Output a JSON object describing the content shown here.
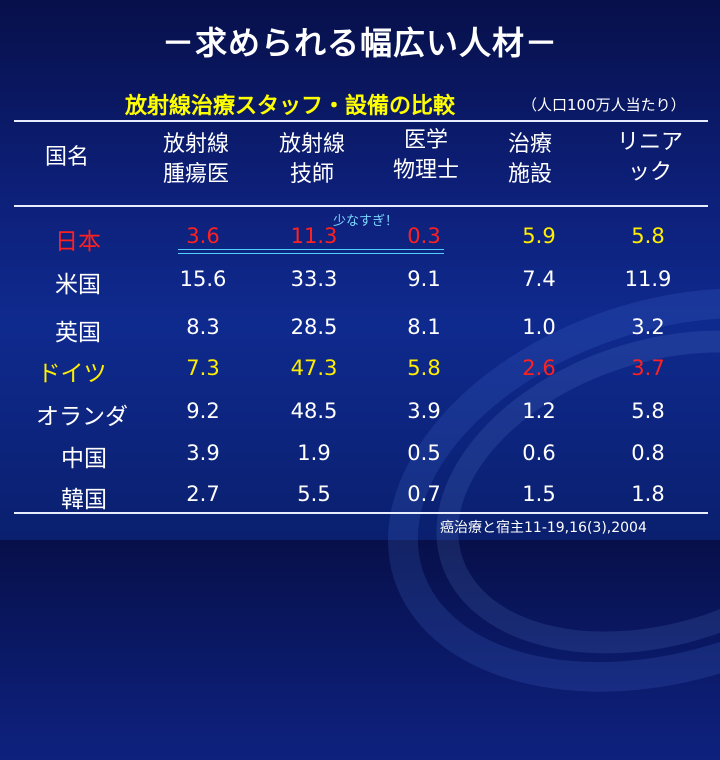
{
  "title": "－求められる幅広い人材－",
  "subtitle": "放射線治療スタッフ・設備の比較",
  "subnote": "（人口100万人当たり）",
  "headers": [
    "国名",
    "放射線\n腫瘍医",
    "放射線\n技師",
    "医学\n物理士",
    "治療\n施設",
    "リニア\nック"
  ],
  "note": "少なすぎ！",
  "citation": "癌治療と宿主11-19,16(3),2004",
  "colors": {
    "red": "#ff2020",
    "yellow": "#ffee00",
    "white": "#ffffff"
  },
  "rows": [
    {
      "country": "日本",
      "values": [
        "3.6",
        "11.3",
        "0.3",
        "5.9",
        "5.8"
      ]
    },
    {
      "country": "米国",
      "values": [
        "15.6",
        "33.3",
        "9.1",
        "7.4",
        "11.9"
      ]
    },
    {
      "country": "英国",
      "values": [
        "8.3",
        "28.5",
        "8.1",
        "1.0",
        "3.2"
      ]
    },
    {
      "country": "ドイツ",
      "values": [
        "7.3",
        "47.3",
        "5.8",
        "2.6",
        "3.7"
      ]
    },
    {
      "country": "オランダ",
      "values": [
        "9.2",
        "48.5",
        "3.9",
        "1.2",
        "5.8"
      ]
    },
    {
      "country": "中国",
      "values": [
        "3.9",
        "1.9",
        "0.5",
        "0.6",
        "0.8"
      ]
    },
    {
      "country": "韓国",
      "values": [
        "2.7",
        "5.5",
        "0.7",
        "1.5",
        "1.8"
      ]
    }
  ]
}
